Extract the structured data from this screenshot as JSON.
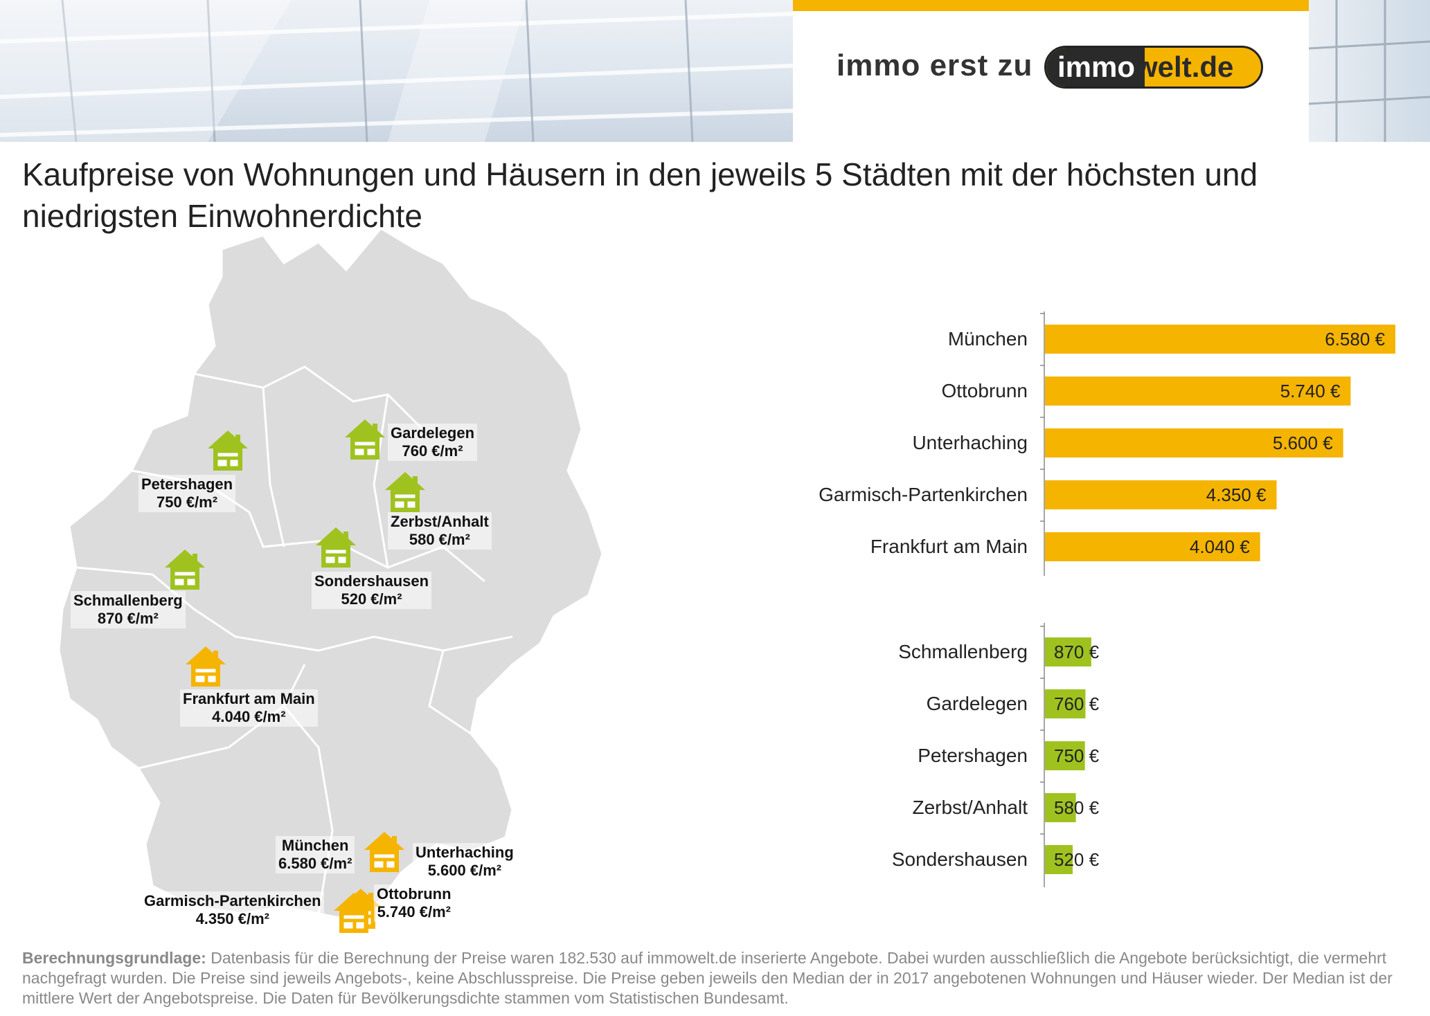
{
  "header": {
    "slogan": "immo erst zu",
    "logo_part1": "immo",
    "logo_part2": "welt.de",
    "brand_color": "#f5b400"
  },
  "title": "Kaufpreise von Wohnungen und Häusern in den jeweils 5 Städten mit der höchsten und niedrigsten Einwohnerdichte",
  "map": {
    "cities": [
      {
        "name": "Petershagen",
        "price": "750 €/m²",
        "group": "low"
      },
      {
        "name": "Gardelegen",
        "price": "760 €/m²",
        "group": "low"
      },
      {
        "name": "Zerbst/Anhalt",
        "price": "580 €/m²",
        "group": "low"
      },
      {
        "name": "Sondershausen",
        "price": "520 €/m²",
        "group": "low"
      },
      {
        "name": "Schmallenberg",
        "price": "870 €/m²",
        "group": "low"
      },
      {
        "name": "Frankfurt am Main",
        "price": "4.040 €/m²",
        "group": "high"
      },
      {
        "name": "München",
        "price": "6.580 €/m²",
        "group": "high"
      },
      {
        "name": "Unterhaching",
        "price": "5.600 €/m²",
        "group": "high"
      },
      {
        "name": "Ottobrunn",
        "price": "5.740 €/m²",
        "group": "high"
      },
      {
        "name": "Garmisch-Partenkirchen",
        "price": "4.350 €/m²",
        "group": "high"
      }
    ],
    "high_color": "#f5b400",
    "low_color": "#9fc21f",
    "map_color": "#dcdcdc",
    "icon": "house-icon"
  },
  "chart_data": {
    "type": "bar",
    "orientation": "horizontal",
    "categories": [
      "München",
      "Ottobrunn",
      "Unterhaching",
      "Garmisch-Partenkirchen",
      "Frankfurt am Main",
      "Schmallenberg",
      "Gardelegen",
      "Petershagen",
      "Zerbst/Anhalt",
      "Sondershausen"
    ],
    "values": [
      6580,
      5740,
      5600,
      4350,
      4040,
      870,
      760,
      750,
      580,
      520
    ],
    "value_labels": [
      "6.580 €",
      "5.740 €",
      "5.600 €",
      "4.350 €",
      "4.040 €",
      "870 €",
      "760 €",
      "750 €",
      "580 €",
      "520 €"
    ],
    "groups": [
      "high",
      "high",
      "high",
      "high",
      "high",
      "low",
      "low",
      "low",
      "low",
      "low"
    ],
    "colors": {
      "high": "#f5b400",
      "low": "#9fc21f"
    },
    "xlim": [
      0,
      6580
    ],
    "grid": false,
    "title": "",
    "xlabel": "",
    "ylabel": ""
  },
  "footer": {
    "label": "Berechnungsgrundlage:",
    "text": " Datenbasis für die Berechnung der Preise waren 182.530 auf immowelt.de inserierte Angebote. Dabei wurden ausschließlich die Angebote berücksichtigt, die vermehrt nachgefragt wurden. Die Preise sind jeweils Angebots-, keine Abschlusspreise. Die Preise geben jeweils den Median der in 2017 angebotenen Wohnungen und Häuser wieder. Der Median ist der mittlere Wert der Angebotspreise. Die Daten für Bevölkerungsdichte stammen vom Statistischen Bundesamt."
  }
}
